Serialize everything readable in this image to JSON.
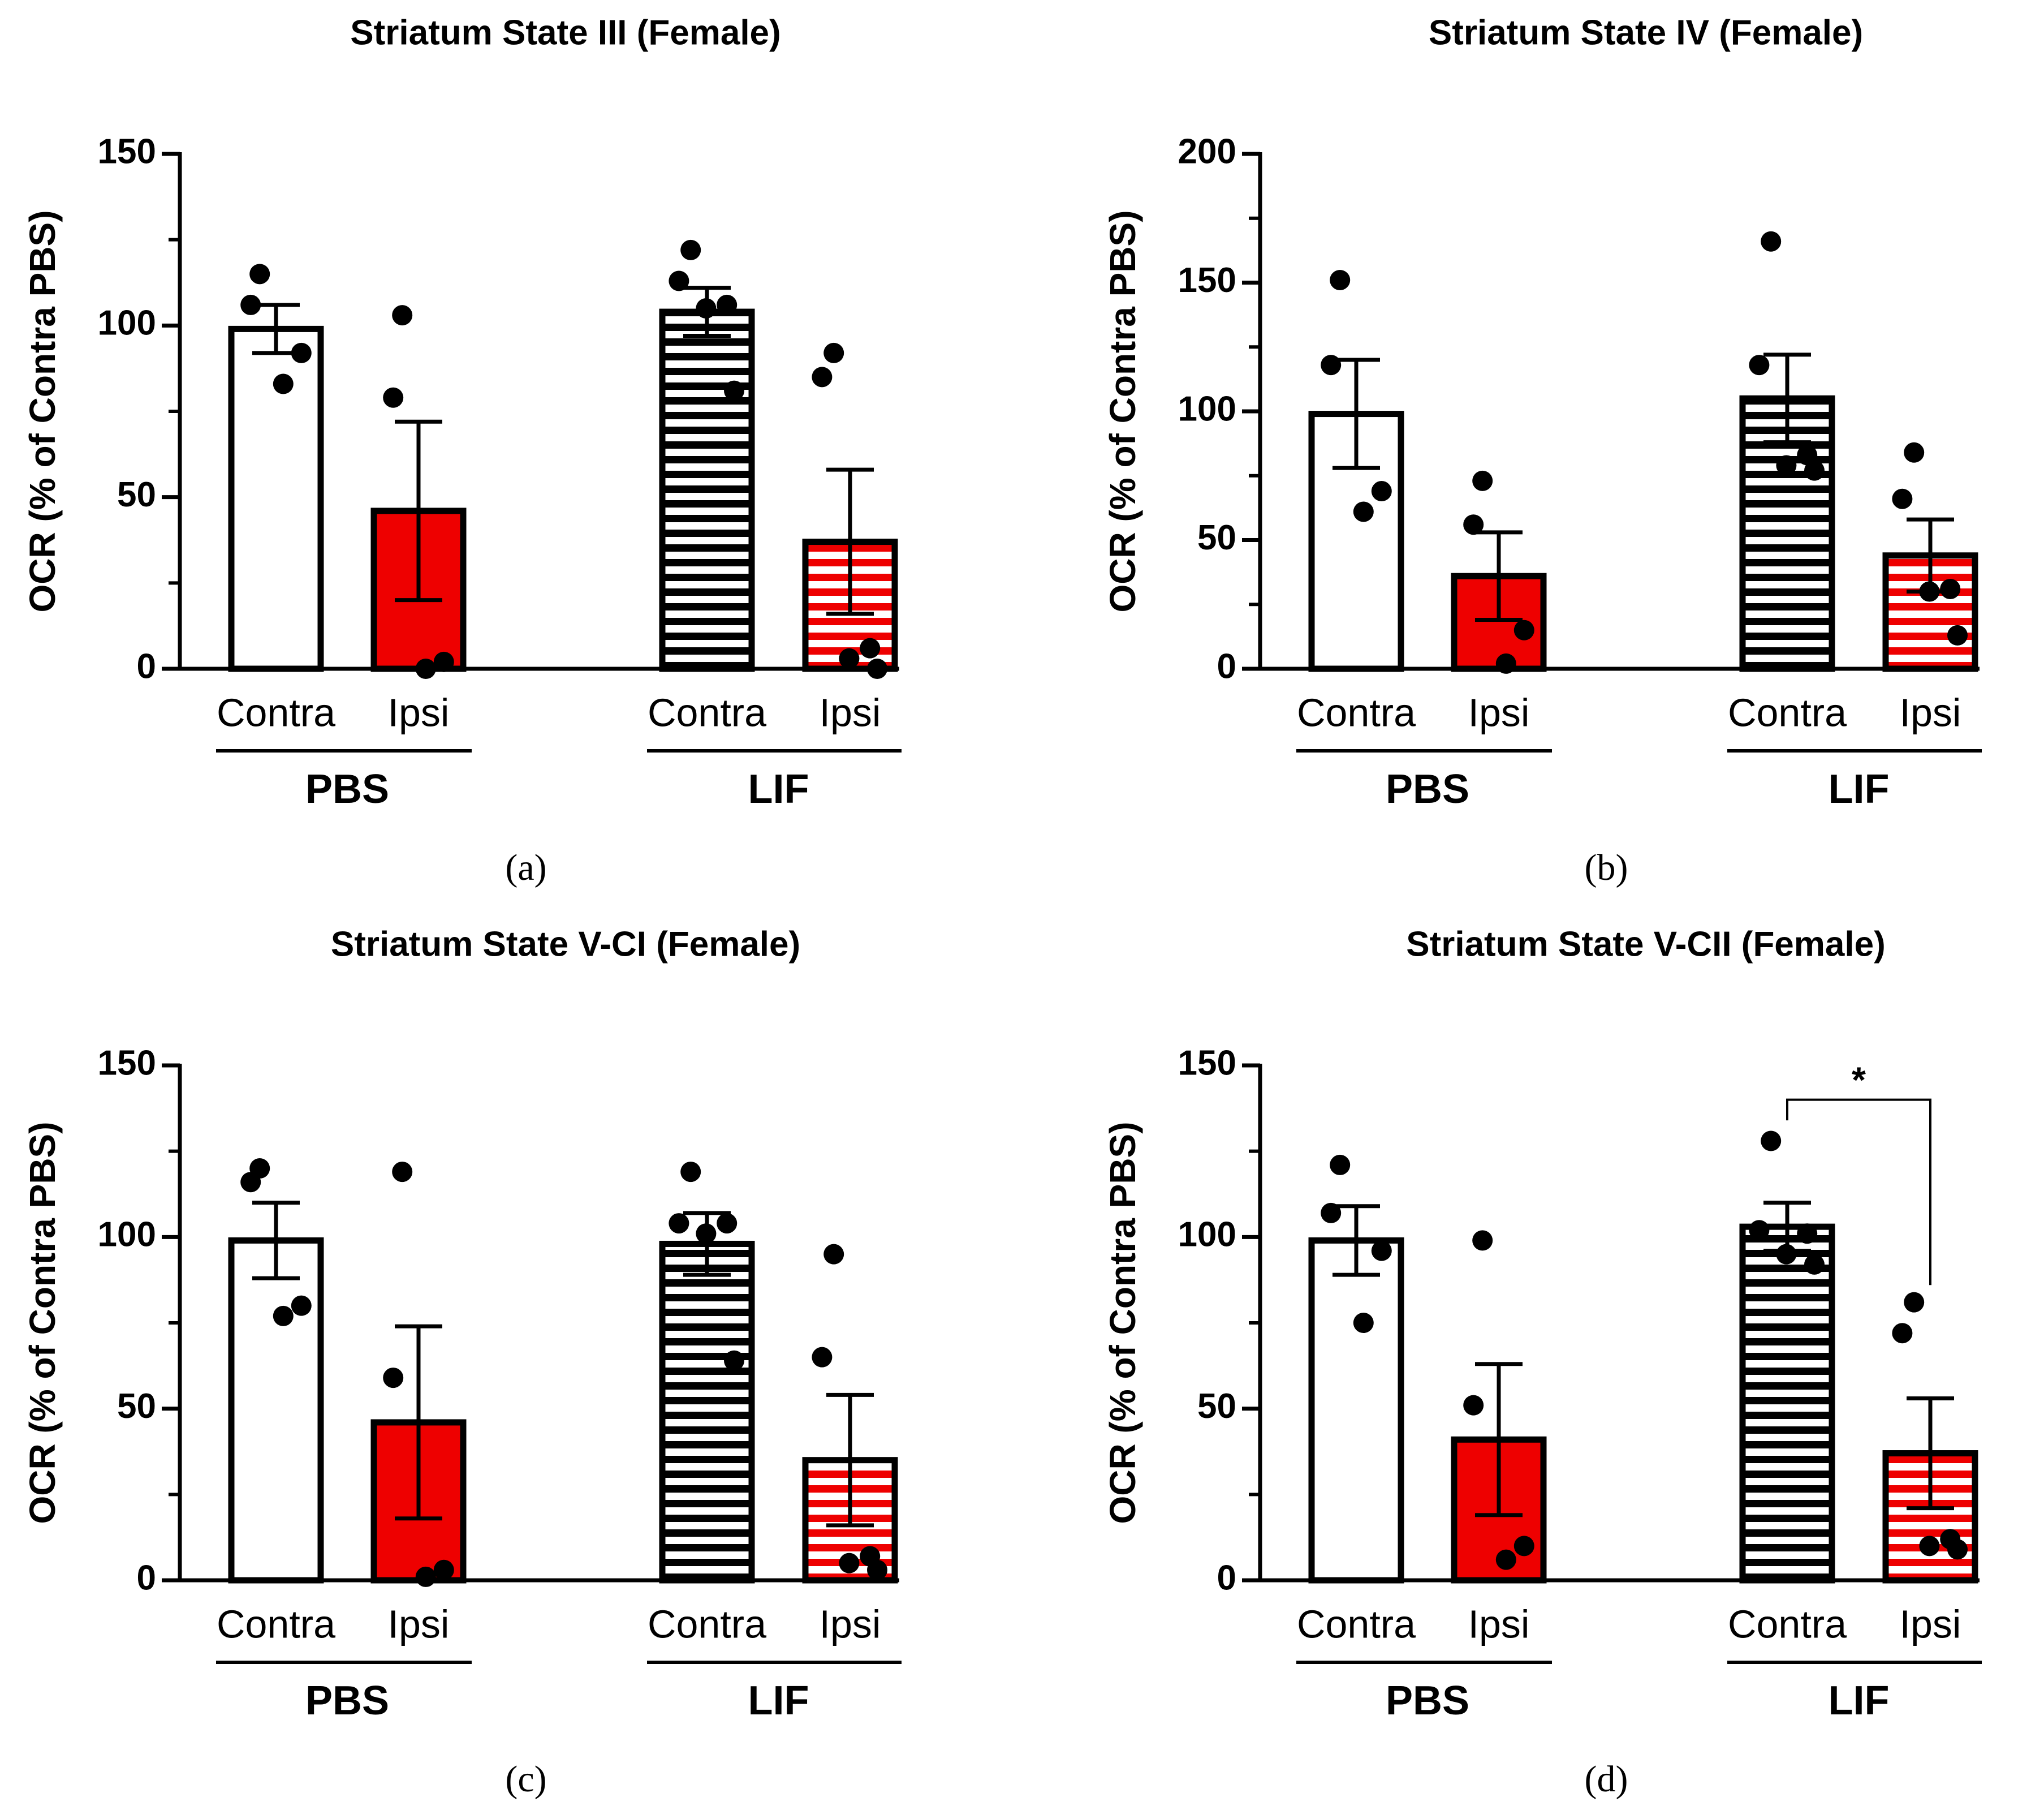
{
  "colors": {
    "black": "#000000",
    "red": "#ee0000",
    "white": "#ffffff"
  },
  "chart_data": [
    {
      "type": "bar",
      "panel_label": "(a)",
      "title": "Striatum State III (Female)",
      "ylabel": "OCR (% of Contra PBS)",
      "ylim": [
        0,
        150
      ],
      "yticks": [
        0,
        50,
        100,
        150
      ],
      "ytick_labels": [
        "0",
        "50",
        "100",
        "150"
      ],
      "categories": [
        "Contra",
        "Ipsi",
        "Contra",
        "Ipsi"
      ],
      "groups": [
        {
          "label": "PBS",
          "bars": [
            0,
            1
          ]
        },
        {
          "label": "LIF",
          "bars": [
            2,
            3
          ]
        }
      ],
      "bars": [
        {
          "category": "Contra",
          "group": "PBS",
          "fill": "white",
          "value": 99,
          "sem": 7,
          "points": [
            115,
            106,
            92,
            83
          ]
        },
        {
          "category": "Ipsi",
          "group": "PBS",
          "fill": "red",
          "value": 46,
          "sem": 26,
          "points": [
            103,
            79,
            2,
            0
          ]
        },
        {
          "category": "Contra",
          "group": "LIF",
          "fill": "white-striped",
          "value": 104,
          "sem": 7,
          "points": [
            122,
            113,
            106,
            105,
            81
          ]
        },
        {
          "category": "Ipsi",
          "group": "LIF",
          "fill": "red-striped",
          "value": 37,
          "sem": 21,
          "points": [
            92,
            85,
            6,
            3,
            0
          ]
        }
      ],
      "significance": []
    },
    {
      "type": "bar",
      "panel_label": "(b)",
      "title": "Striatum State IV (Female)",
      "ylabel": "OCR (% of Contra PBS)",
      "ylim": [
        0,
        200
      ],
      "yticks": [
        0,
        50,
        100,
        150,
        200
      ],
      "ytick_labels": [
        "0",
        "50",
        "100",
        "150",
        "200"
      ],
      "categories": [
        "Contra",
        "Ipsi",
        "Contra",
        "Ipsi"
      ],
      "groups": [
        {
          "label": "PBS",
          "bars": [
            0,
            1
          ]
        },
        {
          "label": "LIF",
          "bars": [
            2,
            3
          ]
        }
      ],
      "bars": [
        {
          "category": "Contra",
          "group": "PBS",
          "fill": "white",
          "value": 99,
          "sem": 21,
          "points": [
            151,
            118,
            69,
            61
          ]
        },
        {
          "category": "Ipsi",
          "group": "PBS",
          "fill": "red",
          "value": 36,
          "sem": 17,
          "points": [
            73,
            56,
            15,
            2
          ]
        },
        {
          "category": "Contra",
          "group": "LIF",
          "fill": "white-striped",
          "value": 105,
          "sem": 17,
          "points": [
            166,
            118,
            83,
            79,
            77
          ]
        },
        {
          "category": "Ipsi",
          "group": "LIF",
          "fill": "red-striped",
          "value": 44,
          "sem": 14,
          "points": [
            84,
            66,
            31,
            30,
            13
          ]
        }
      ],
      "significance": []
    },
    {
      "type": "bar",
      "panel_label": "(c)",
      "title": "Striatum State V-CI (Female)",
      "ylabel": "OCR (% of Contra PBS)",
      "ylim": [
        0,
        150
      ],
      "yticks": [
        0,
        50,
        100,
        150
      ],
      "ytick_labels": [
        "0",
        "50",
        "100",
        "150"
      ],
      "categories": [
        "Contra",
        "Ipsi",
        "Contra",
        "Ipsi"
      ],
      "groups": [
        {
          "label": "PBS",
          "bars": [
            0,
            1
          ]
        },
        {
          "label": "LIF",
          "bars": [
            2,
            3
          ]
        }
      ],
      "bars": [
        {
          "category": "Contra",
          "group": "PBS",
          "fill": "white",
          "value": 99,
          "sem": 11,
          "points": [
            120,
            116,
            80,
            77
          ]
        },
        {
          "category": "Ipsi",
          "group": "PBS",
          "fill": "red",
          "value": 46,
          "sem": 28,
          "points": [
            119,
            59,
            3,
            1
          ]
        },
        {
          "category": "Contra",
          "group": "LIF",
          "fill": "white-striped",
          "value": 98,
          "sem": 9,
          "points": [
            119,
            104,
            104,
            101,
            64
          ]
        },
        {
          "category": "Ipsi",
          "group": "LIF",
          "fill": "red-striped",
          "value": 35,
          "sem": 19,
          "points": [
            95,
            65,
            7,
            5,
            3
          ]
        }
      ],
      "significance": []
    },
    {
      "type": "bar",
      "panel_label": "(d)",
      "title": "Striatum State V-CII (Female)",
      "ylabel": "OCR (% of Contra PBS)",
      "ylim": [
        0,
        150
      ],
      "yticks": [
        0,
        50,
        100,
        150
      ],
      "ytick_labels": [
        "0",
        "50",
        "100",
        "150"
      ],
      "categories": [
        "Contra",
        "Ipsi",
        "Contra",
        "Ipsi"
      ],
      "groups": [
        {
          "label": "PBS",
          "bars": [
            0,
            1
          ]
        },
        {
          "label": "LIF",
          "bars": [
            2,
            3
          ]
        }
      ],
      "bars": [
        {
          "category": "Contra",
          "group": "PBS",
          "fill": "white",
          "value": 99,
          "sem": 10,
          "points": [
            121,
            107,
            96,
            75
          ]
        },
        {
          "category": "Ipsi",
          "group": "PBS",
          "fill": "red",
          "value": 41,
          "sem": 22,
          "points": [
            99,
            51,
            10,
            6
          ]
        },
        {
          "category": "Contra",
          "group": "LIF",
          "fill": "white-striped",
          "value": 103,
          "sem": 7,
          "points": [
            128,
            102,
            101,
            95,
            92
          ]
        },
        {
          "category": "Ipsi",
          "group": "LIF",
          "fill": "red-striped",
          "value": 37,
          "sem": 16,
          "points": [
            81,
            72,
            12,
            10,
            9
          ]
        }
      ],
      "significance": [
        {
          "from": 2,
          "to": 3,
          "label": "*",
          "y": 140,
          "left_drop_to": 134,
          "right_drop_to": 86
        }
      ]
    }
  ]
}
